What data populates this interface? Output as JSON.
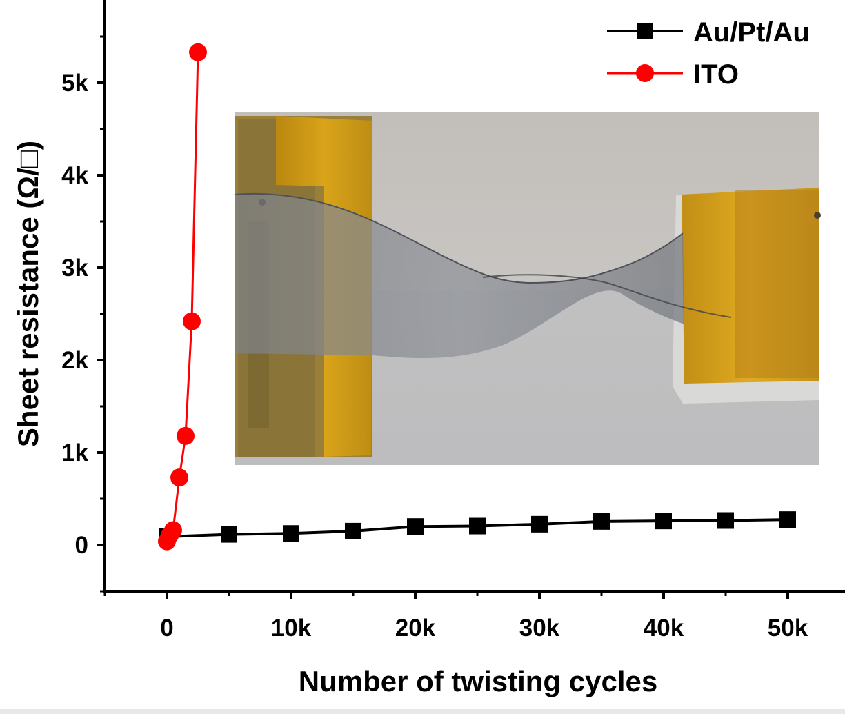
{
  "chart_data": {
    "type": "line",
    "xlabel": "Number of twisting cycles",
    "ylabel": "Sheet resistance (Ω/□)",
    "xlim": [
      -5000,
      54500
    ],
    "ylim": [
      -500,
      5950
    ],
    "x_ticks": [
      0,
      10000,
      20000,
      30000,
      40000,
      50000
    ],
    "x_tick_labels": [
      "0",
      "10k",
      "20k",
      "30k",
      "40k",
      "50k"
    ],
    "y_ticks": [
      0,
      1000,
      2000,
      3000,
      4000,
      5000
    ],
    "y_tick_labels": [
      "0",
      "1k",
      "2k",
      "3k",
      "4k",
      "5k"
    ],
    "legend_position": "top-right",
    "inset": "photo of a twisted film sample clamped between two holders wrapped in yellow tape",
    "series": [
      {
        "name": "Au/Pt/Au",
        "color": "#000000",
        "marker": "square",
        "points": [
          [
            0,
            90
          ],
          [
            5000,
            115
          ],
          [
            10000,
            125
          ],
          [
            15000,
            150
          ],
          [
            20000,
            200
          ],
          [
            25000,
            205
          ],
          [
            30000,
            225
          ],
          [
            35000,
            255
          ],
          [
            40000,
            260
          ],
          [
            45000,
            265
          ],
          [
            50000,
            275
          ]
        ]
      },
      {
        "name": "ITO",
        "color": "#ff0000",
        "marker": "circle",
        "points": [
          [
            0,
            40
          ],
          [
            250,
            110
          ],
          [
            500,
            160
          ],
          [
            1000,
            730
          ],
          [
            1500,
            1180
          ],
          [
            2000,
            2420
          ],
          [
            2500,
            5330
          ]
        ]
      }
    ]
  }
}
